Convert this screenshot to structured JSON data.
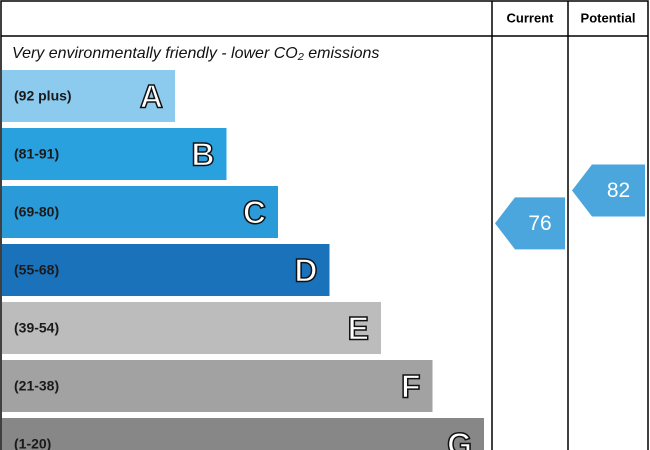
{
  "chart_data": {
    "type": "epc",
    "column_current": "Current",
    "column_potential": "Potential",
    "subtitle": "Very environmentally friendly - lower CO₂ emissions",
    "bands": [
      {
        "range": "(92 plus)",
        "letter": "A",
        "color": "#8ccbee"
      },
      {
        "range": "(81-91)",
        "letter": "B",
        "color": "#2aa1df"
      },
      {
        "range": "(69-80)",
        "letter": "C",
        "color": "#2a9bd8"
      },
      {
        "range": "(55-68)",
        "letter": "D",
        "color": "#1a73ba"
      },
      {
        "range": "(39-54)",
        "letter": "E",
        "color": "#bcbcbc"
      },
      {
        "range": "(21-38)",
        "letter": "F",
        "color": "#a2a2a2"
      },
      {
        "range": "(1-20)",
        "letter": "G",
        "color": "#878787"
      }
    ],
    "current": 76,
    "potential": 82,
    "arrow_color": "#4aa6dc"
  }
}
